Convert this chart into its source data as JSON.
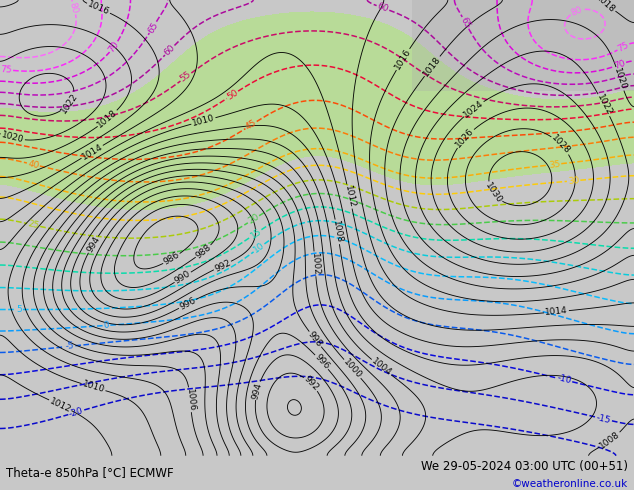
{
  "title_left": "Theta-e 850hPa [°C] ECMWF",
  "title_right": "We 29-05-2024 03:00 UTC (00+51)",
  "credit": "©weatheronline.co.uk",
  "bg_color": "#c8c8c8",
  "map_bg": "#c8c8c8",
  "figsize": [
    6.34,
    4.9
  ],
  "dpi": 100,
  "green_fill_color": "#b4e08c",
  "title_fontsize": 8.5,
  "credit_fontsize": 7.5,
  "credit_color": "#0000cc",
  "label_fontsize": 6.5,
  "pressure_label_fontsize": 6.5,
  "theta_color_map": {
    "-20": "#0000cc",
    "-15": "#0000cc",
    "-10": "#0000dd",
    "-5": "#0055ee",
    "0": "#0099ff",
    "5": "#00bbff",
    "10": "#00ccdd",
    "15": "#00ddaa",
    "20": "#44cc44",
    "25": "#aacc00",
    "30": "#ffcc00",
    "35": "#ffaa00",
    "40": "#ff7700",
    "45": "#ff4400",
    "50": "#ee0033",
    "55": "#cc0066",
    "60": "#aa0099",
    "65": "#bb00bb",
    "70": "#dd00dd",
    "75": "#ff22ff",
    "80": "#ff66ff"
  }
}
